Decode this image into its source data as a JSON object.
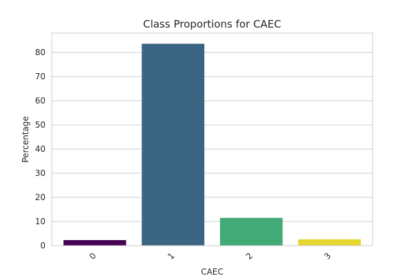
{
  "chart_data": {
    "type": "bar",
    "title": "Class Proportions for CAEC",
    "xlabel": "CAEC",
    "ylabel": "Percentage",
    "categories": [
      "0",
      "1",
      "2",
      "3"
    ],
    "values": [
      2.3,
      83.6,
      11.5,
      2.6
    ],
    "colors": [
      "#440154",
      "#3b6482",
      "#42a977",
      "#e6d52f"
    ],
    "ylim": [
      0,
      88
    ],
    "yticks": [
      "0",
      "10",
      "20",
      "30",
      "40",
      "50",
      "60",
      "70",
      "80"
    ],
    "grid": true,
    "xtick_rotation": -45
  }
}
